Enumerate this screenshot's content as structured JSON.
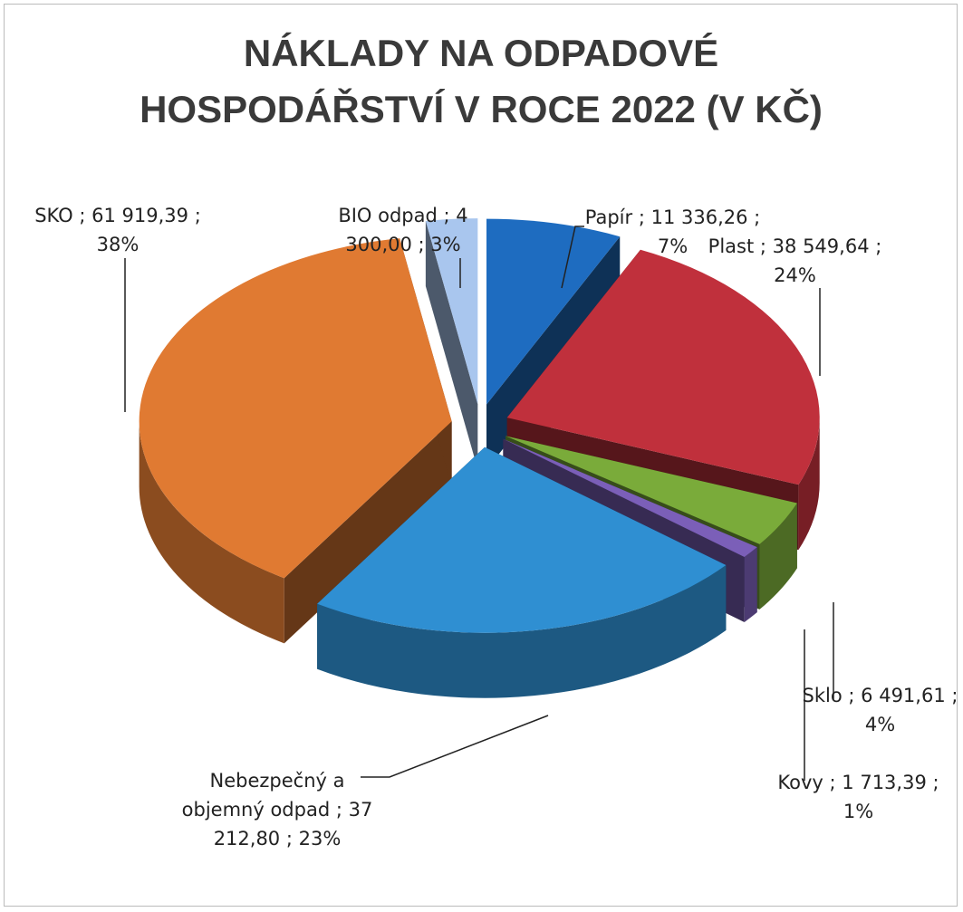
{
  "chart_data": {
    "type": "pie3d",
    "title": "NÁKLADY NA ODPADOVÉ HOSPODÁŘSTVÍ V ROCE 2022 (V KČ)",
    "categories": [
      "Papír",
      "Plast",
      "Sklo",
      "Kovy",
      "Nebezpečný a objemný odpad",
      "SKO",
      "BIO odpad"
    ],
    "values": [
      11336.26,
      38549.64,
      6491.61,
      1713.39,
      37212.8,
      61919.39,
      4300.0
    ],
    "value_labels": [
      "11 336,26",
      "38 549,64",
      "6 491,61",
      "1 713,39",
      "37 212,80",
      "61 919,39",
      "4 300,00"
    ],
    "percents": [
      7,
      24,
      4,
      1,
      23,
      38,
      3
    ],
    "percent_labels": [
      "7%",
      "24%",
      "4%",
      "1%",
      "23%",
      "38%",
      "3%"
    ],
    "label_separator": ";",
    "colors": [
      "#1e6cc0",
      "#c0303c",
      "#7aab3a",
      "#7b5fb8",
      "#2f8fd2",
      "#e07a32",
      "#a9c6ee"
    ]
  }
}
